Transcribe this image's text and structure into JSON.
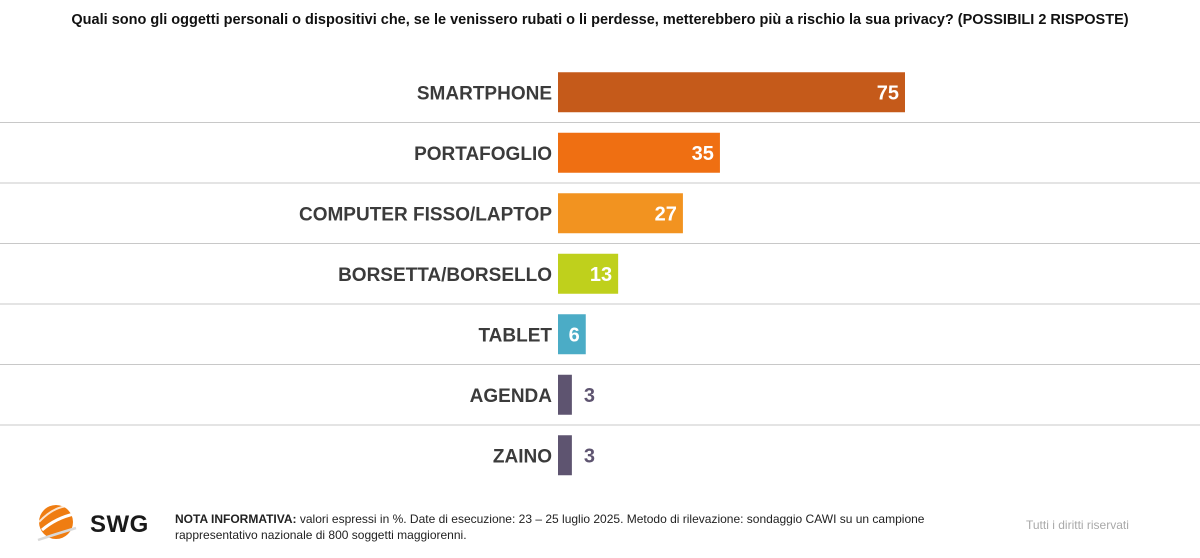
{
  "header": {
    "title": "Quali sono gli oggetti personali o dispositivi che, se le venissero rubati o li perdesse, metterebbero più a rischio la sua privacy? (POSSIBILI 2 RISPOSTE)"
  },
  "chart_data": {
    "type": "bar",
    "orientation": "horizontal",
    "title": "Quali sono gli oggetti personali o dispositivi che, se le venissero rubati o li perdesse, metterebbero più a rischio la sua privacy? (POSSIBILI 2 RISPOSTE)",
    "categories": [
      "SMARTPHONE",
      "PORTAFOGLIO",
      "COMPUTER FISSO/LAPTOP",
      "BORSETTA/BORSELLO",
      "TABLET",
      "AGENDA",
      "ZAINO"
    ],
    "values": [
      75,
      35,
      27,
      13,
      6,
      3,
      3
    ],
    "colors": [
      "#c55a1a",
      "#ef6f12",
      "#f29320",
      "#bfd01c",
      "#4bacc6",
      "#5e5470",
      "#5e5470"
    ],
    "value_label_colors": [
      "#ffffff",
      "#ffffff",
      "#ffffff",
      "#ffffff",
      "#ffffff",
      "#5e5470",
      "#5e5470"
    ],
    "xlim": [
      0,
      100
    ],
    "unit": "%",
    "grid": false
  },
  "footer": {
    "brand": "SWG",
    "note_label": "NOTA INFORMATIVA:",
    "note_text": " valori espressi in %. Date di esecuzione: 23 – 25 luglio 2025. Metodo di rilevazione: sondaggio CAWI su un campione rappresentativo nazionale di 800 soggetti maggiorenni.",
    "rights": "Tutti i diritti riservati"
  }
}
